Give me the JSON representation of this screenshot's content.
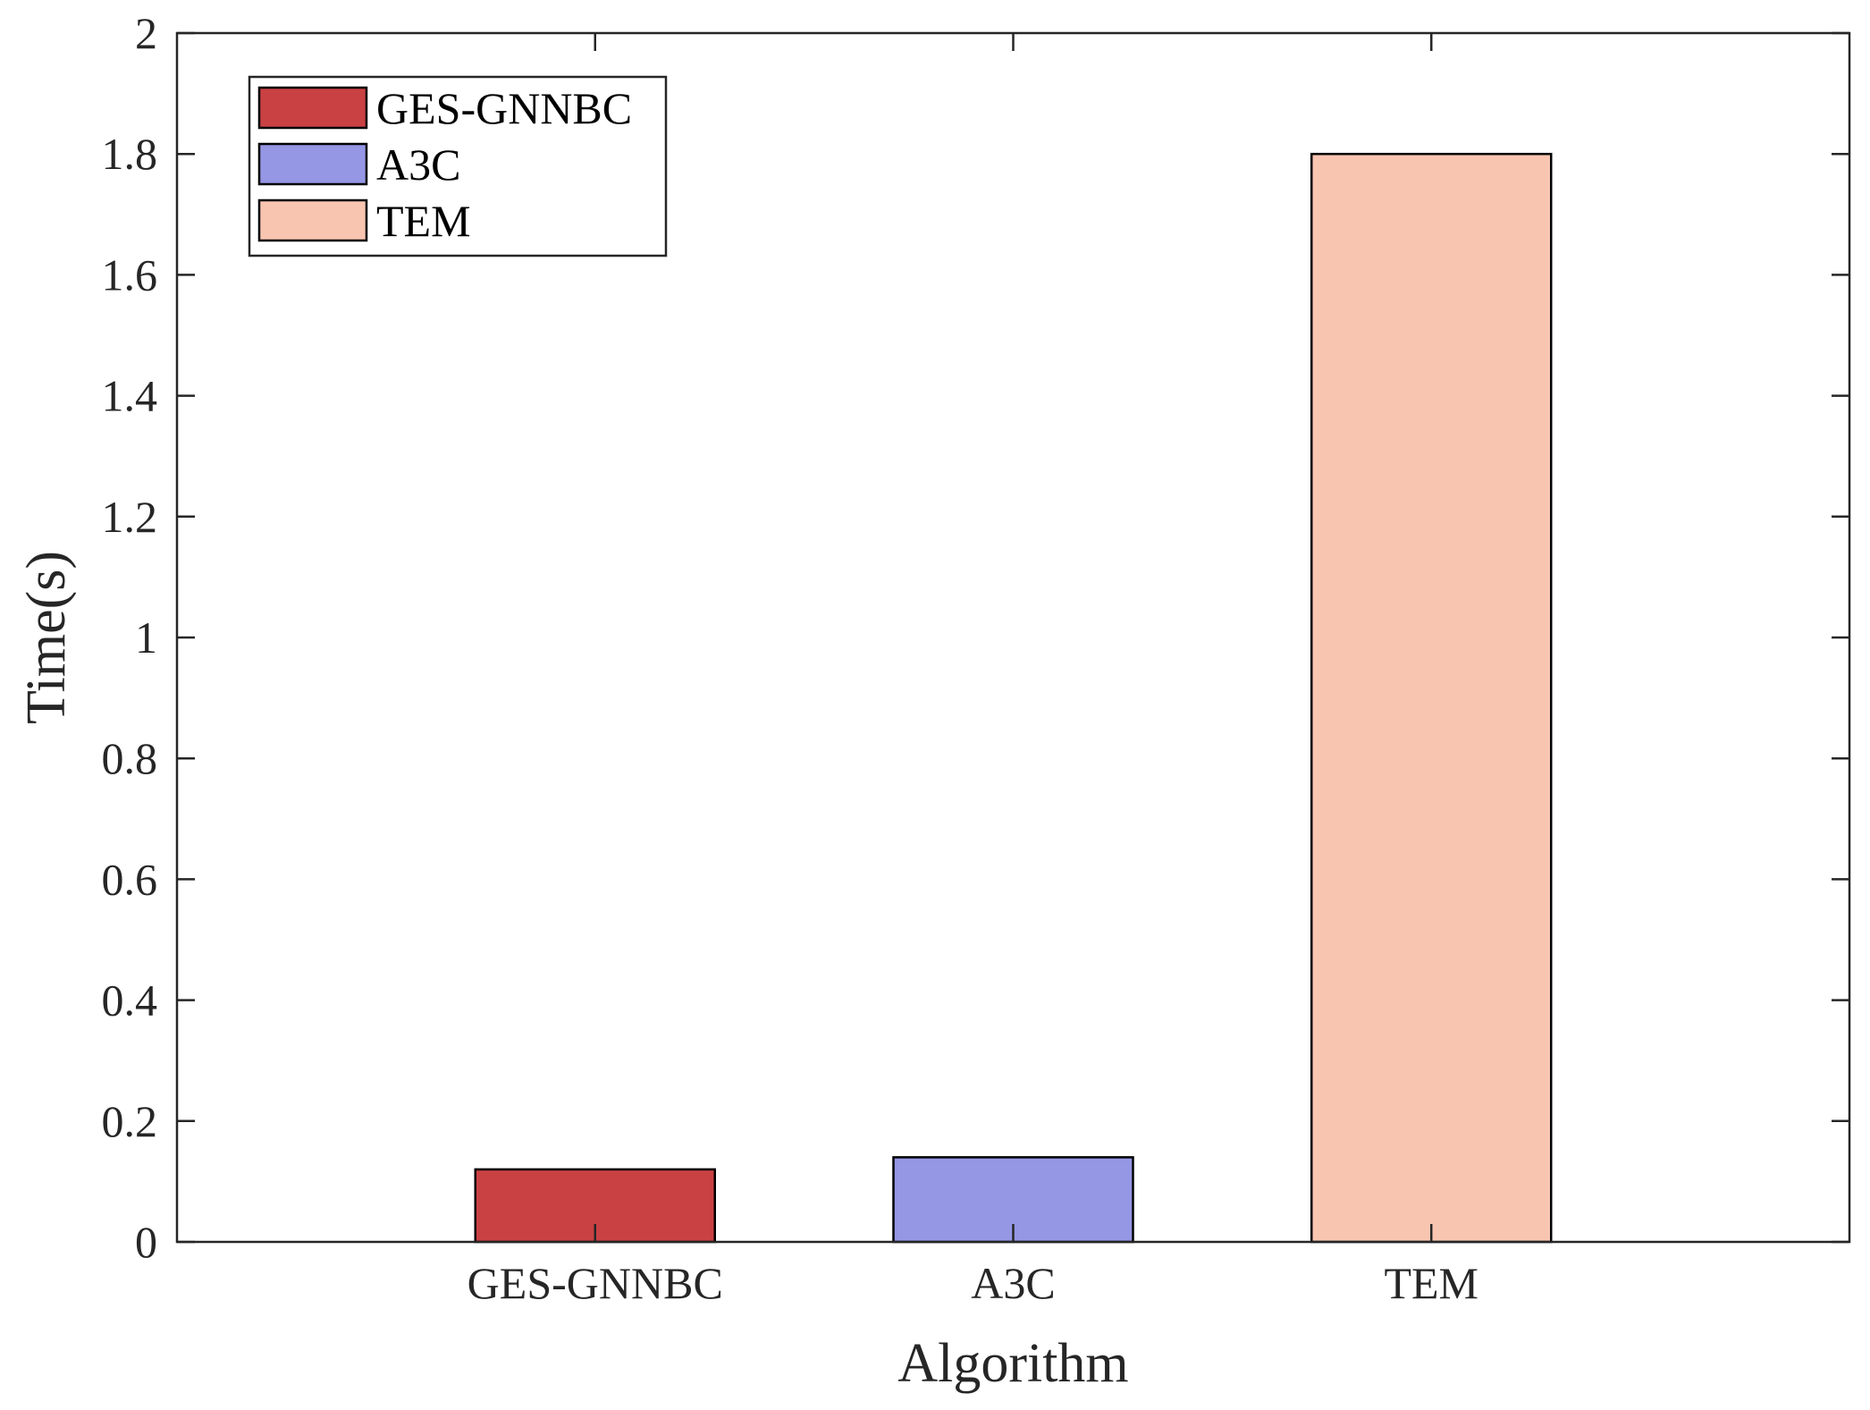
{
  "chart_data": {
    "type": "bar",
    "title": "",
    "xlabel": "Algorithm",
    "ylabel": "Time(s)",
    "categories": [
      "GES-GNNBC",
      "A3C",
      "TEM"
    ],
    "values": [
      0.12,
      0.14,
      1.8
    ],
    "colors": [
      "#c94143",
      "#9597e5",
      "#f8c5b1"
    ],
    "ylim": [
      0,
      2
    ],
    "yticks": [
      0,
      0.2,
      0.4,
      0.6,
      0.8,
      1,
      1.2,
      1.4,
      1.6,
      1.8,
      2
    ],
    "ytick_labels": [
      "0",
      "0.2",
      "0.4",
      "0.6",
      "0.8",
      "1",
      "1.2",
      "1.4",
      "1.6",
      "1.8",
      "2"
    ],
    "xlim": [
      0,
      4
    ],
    "grid": false,
    "legend": {
      "placement": "top-left",
      "entries": [
        "GES-GNNBC",
        "A3C",
        "TEM"
      ]
    }
  }
}
